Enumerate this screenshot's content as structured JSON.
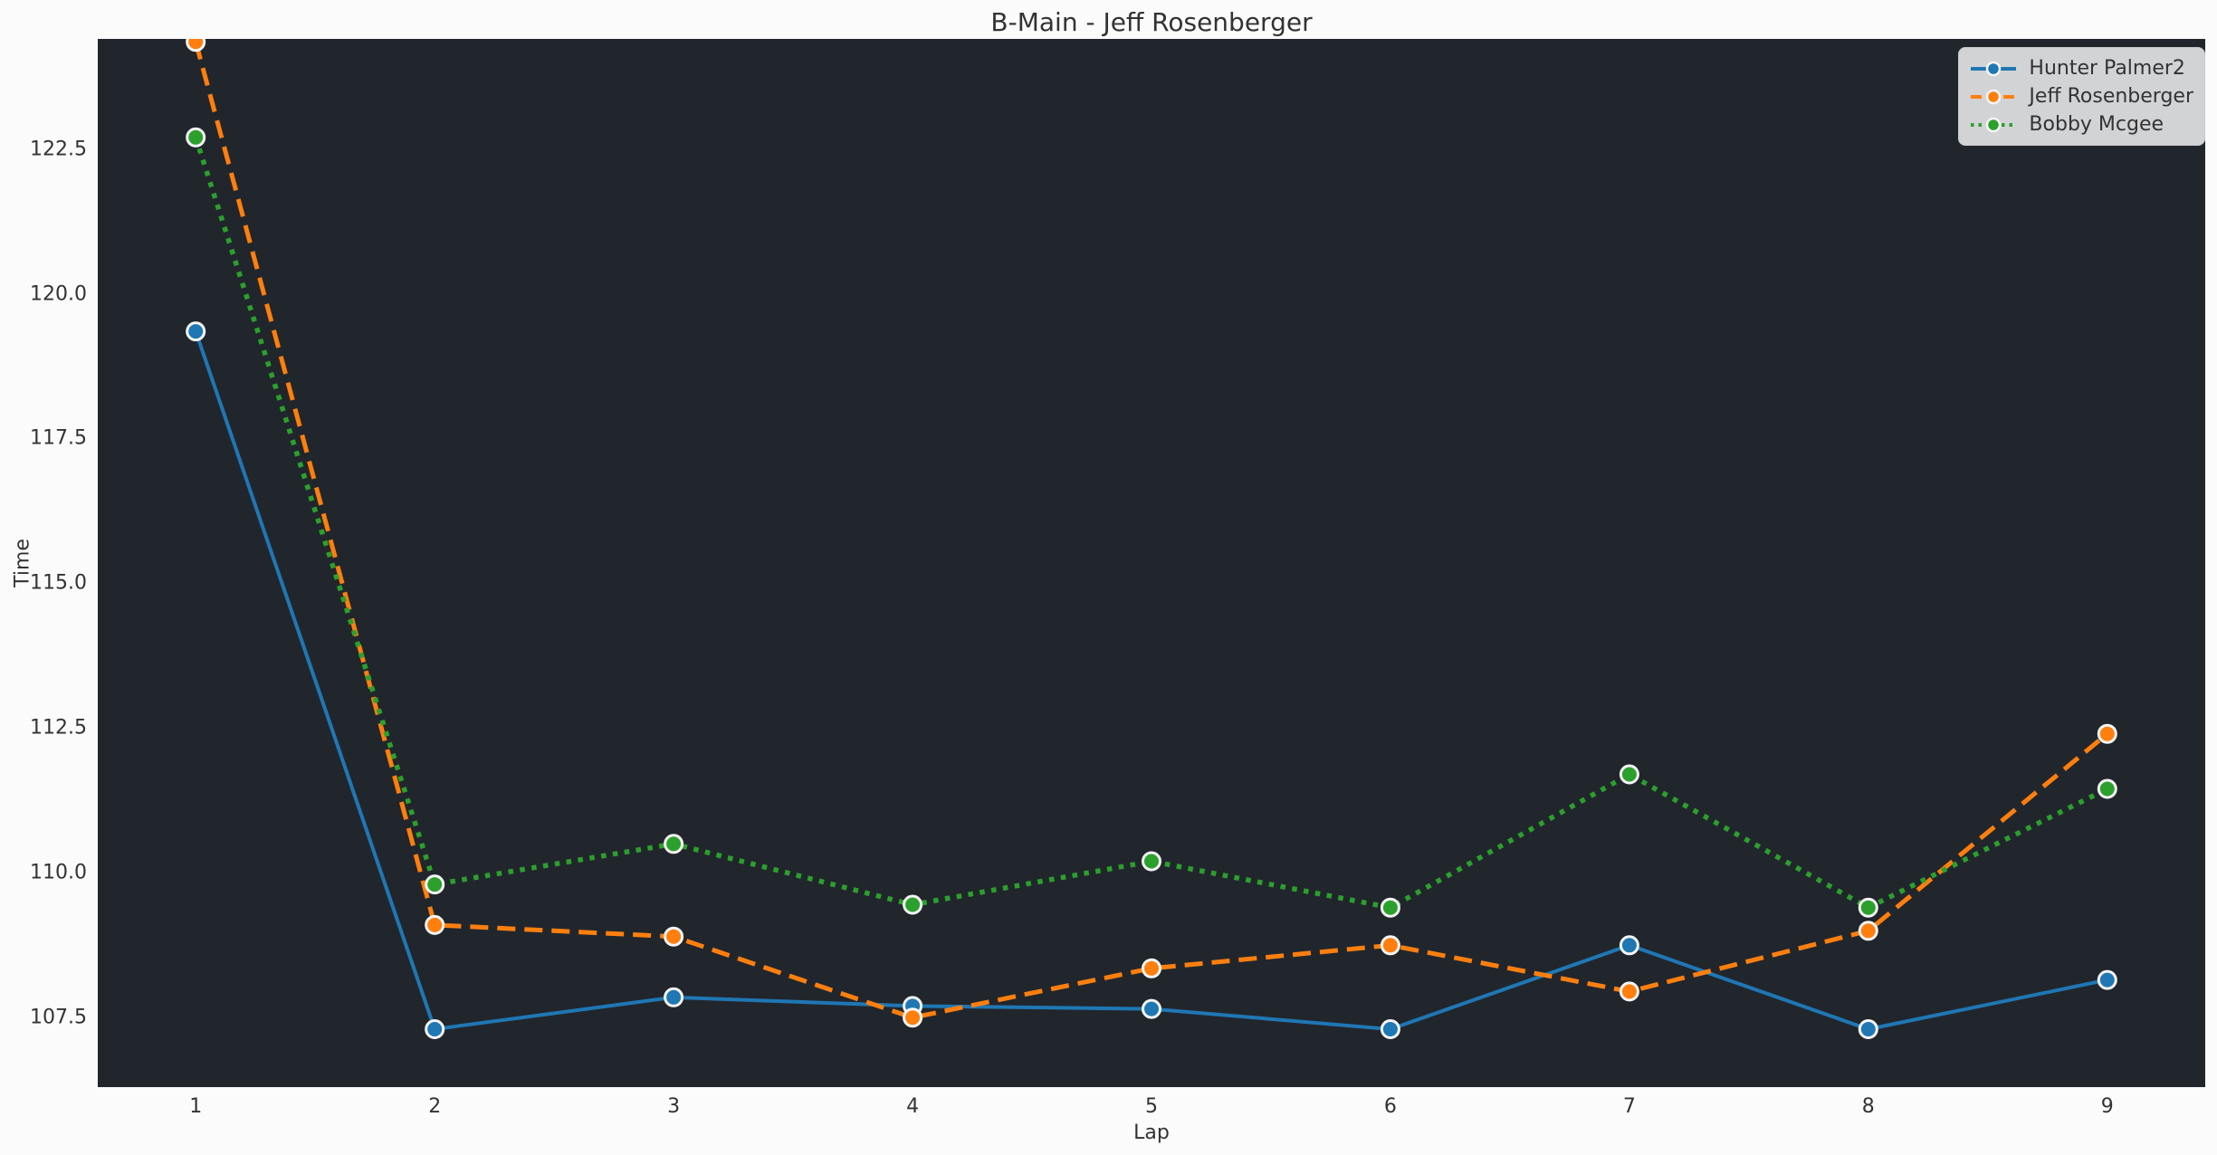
{
  "chart_data": {
    "type": "line",
    "title": "B-Main - Jeff Rosenberger",
    "xlabel": "Lap",
    "ylabel": "Time",
    "x": [
      1,
      2,
      3,
      4,
      5,
      6,
      7,
      8,
      9
    ],
    "xlim": [
      0.59,
      9.41
    ],
    "ylim": [
      106.3,
      124.4
    ],
    "xticks": {
      "values": [
        1,
        2,
        3,
        4,
        5,
        6,
        7,
        8,
        9
      ],
      "labels": [
        "1",
        "2",
        "3",
        "4",
        "5",
        "6",
        "7",
        "8",
        "9"
      ]
    },
    "yticks": {
      "values": [
        107.5,
        110.0,
        112.5,
        115.0,
        117.5,
        120.0,
        122.5
      ],
      "labels": [
        "107.5",
        "110.0",
        "112.5",
        "115.0",
        "117.5",
        "120.0",
        "122.5"
      ]
    },
    "grid": false,
    "legend_position": "upper right",
    "series": [
      {
        "name": "Hunter Palmer2",
        "color": "#1f77b4",
        "line_style": "solid",
        "marker": "circle",
        "values": [
          119.35,
          107.3,
          107.85,
          107.7,
          107.65,
          107.3,
          108.75,
          107.3,
          108.15
        ]
      },
      {
        "name": "Jeff Rosenberger",
        "color": "#ff7f0e",
        "line_style": "dashed",
        "marker": "circle",
        "values": [
          124.35,
          109.1,
          108.9,
          107.5,
          108.35,
          108.75,
          107.95,
          109.0,
          112.4
        ]
      },
      {
        "name": "Bobby Mcgee",
        "color": "#2ca02c",
        "line_style": "dotted",
        "marker": "circle",
        "values": [
          122.7,
          109.8,
          110.5,
          109.45,
          110.2,
          109.4,
          111.7,
          109.4,
          111.45
        ]
      }
    ],
    "colors": {
      "figure_bg": "#fbfbfb",
      "plot_bg": "#21262d",
      "text": "#333333",
      "legend_bg": "rgba(255,255,255,0.8)",
      "legend_border": "#cccccc",
      "marker_edge": "#f5f5f5"
    }
  }
}
